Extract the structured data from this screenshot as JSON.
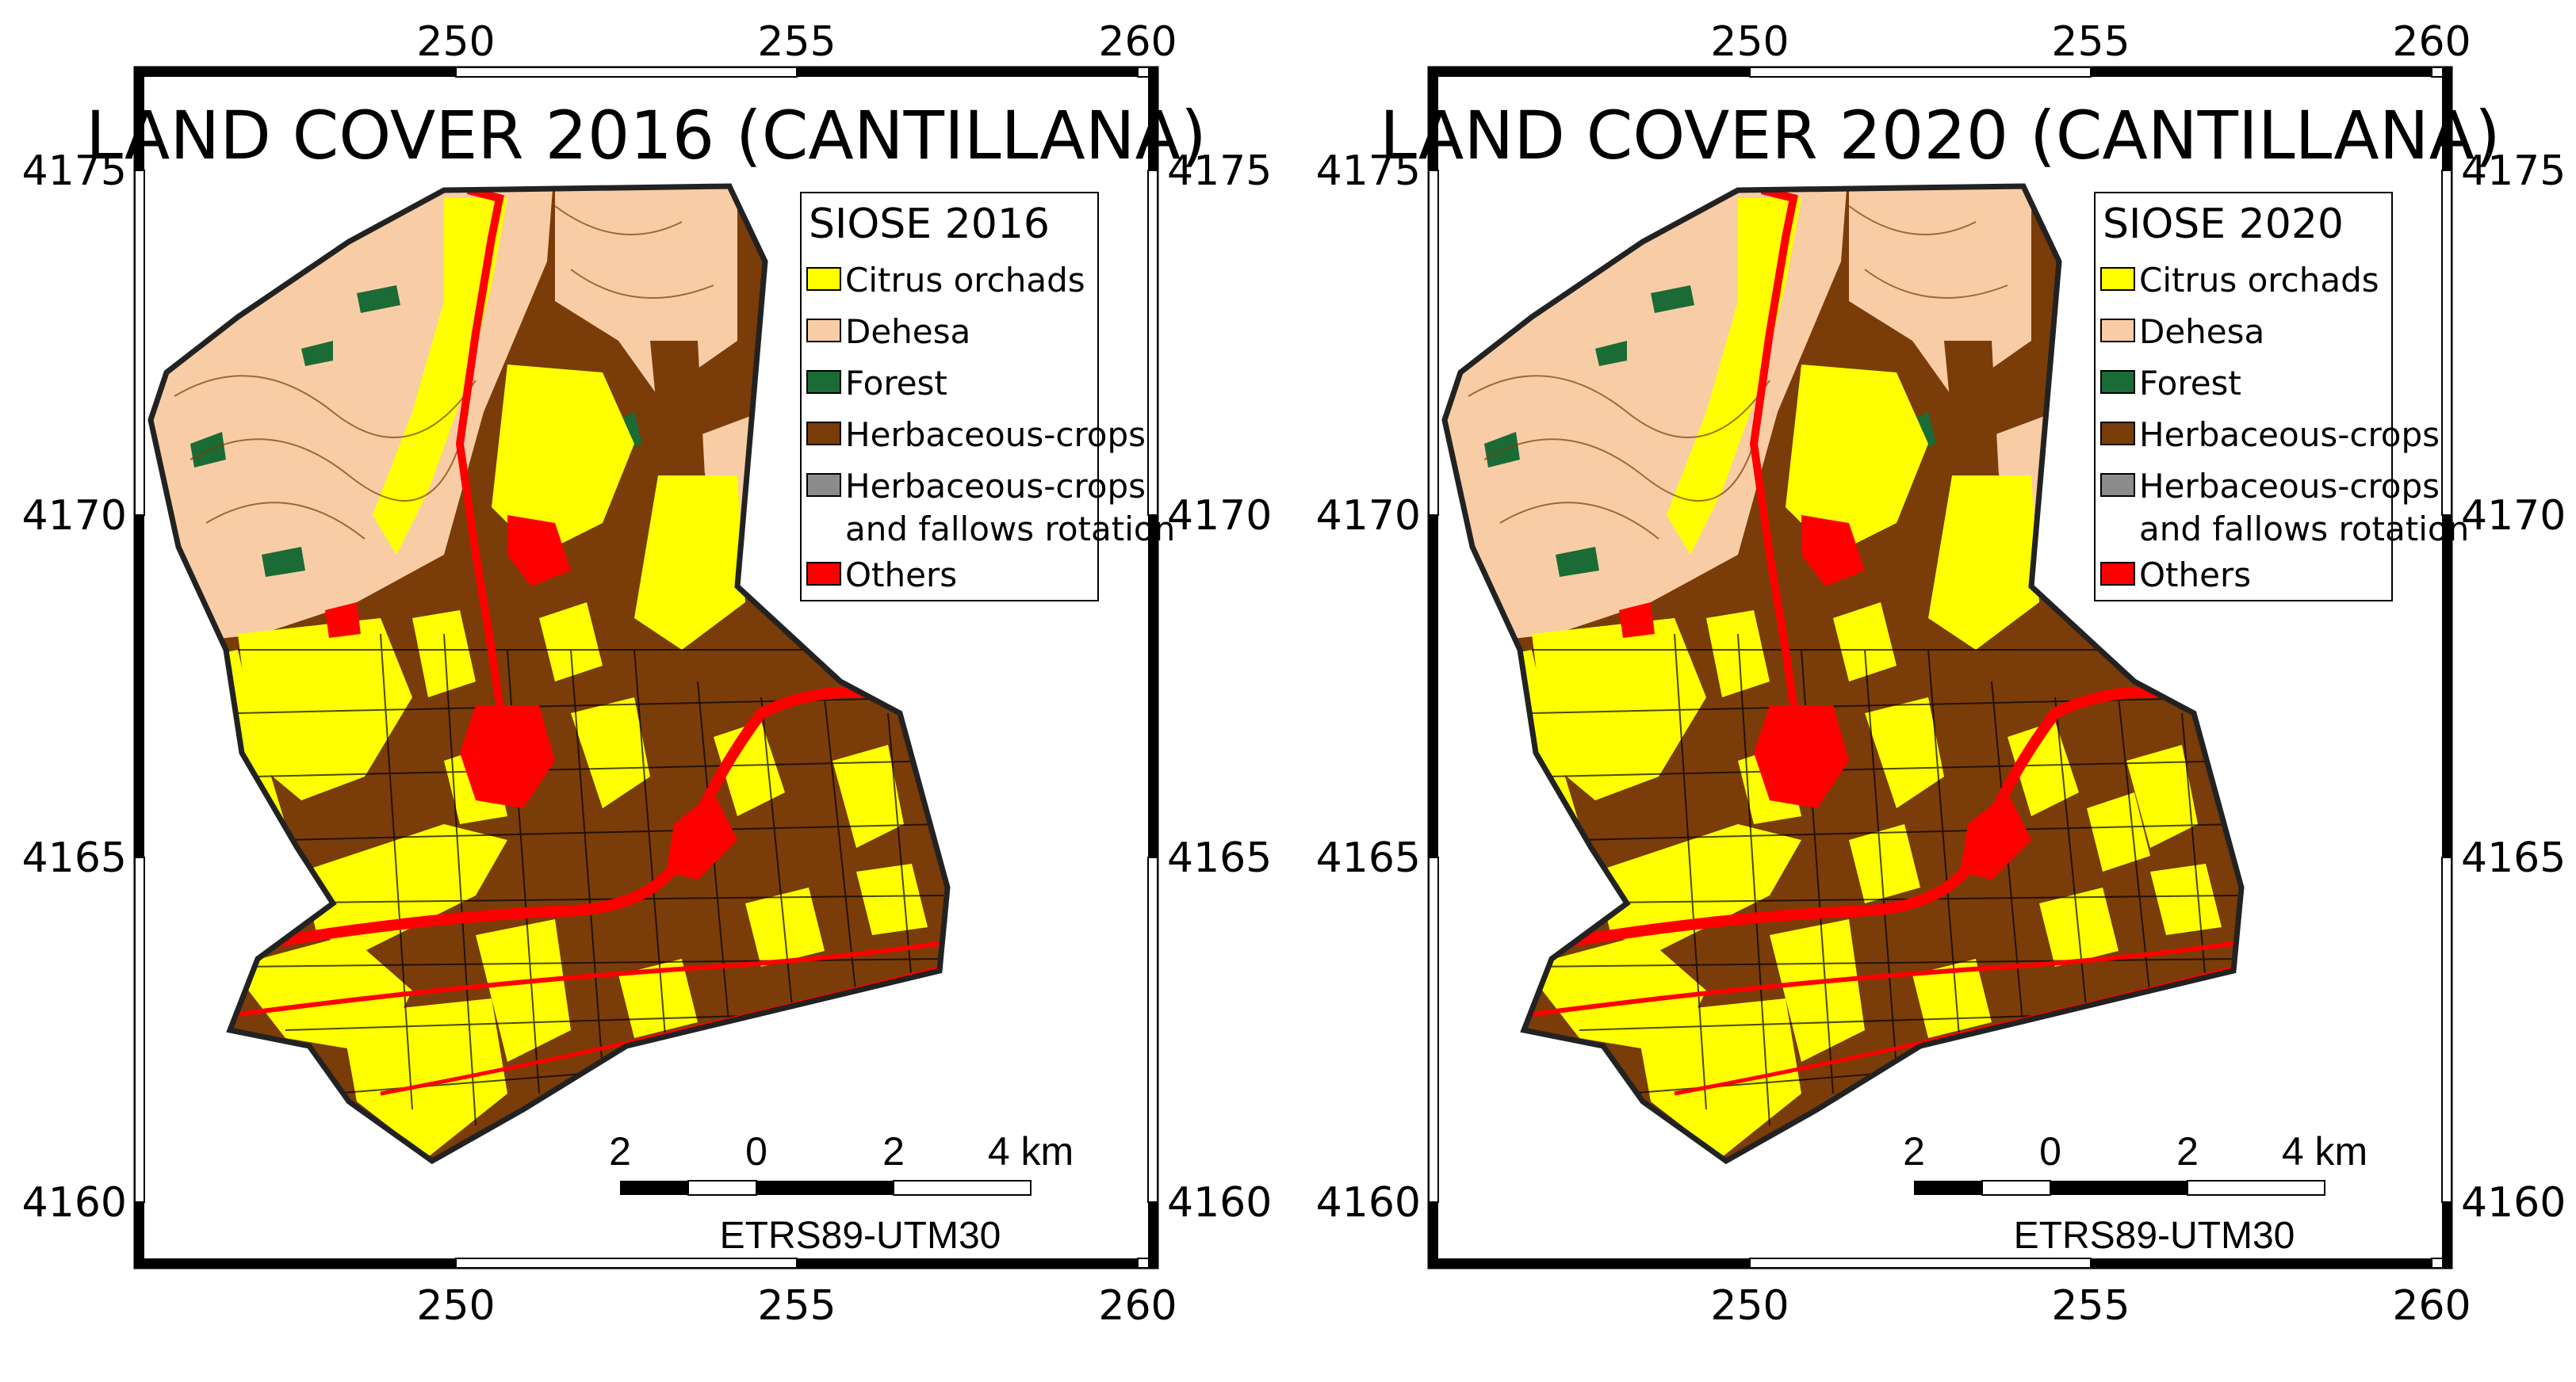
{
  "colors": {
    "citrus": "#ffff00",
    "dehesa": "#f8cda5",
    "forest": "#1b6b36",
    "herbaceous": "#7a3c09",
    "rotation": "#8c8c8c",
    "others": "#ff0000"
  },
  "axes": {
    "x_ticks": [
      "250",
      "255",
      "260"
    ],
    "y_ticks": [
      "4175",
      "4170",
      "4165",
      "4160"
    ]
  },
  "maps": [
    {
      "title": "LAND COVER 2016 (CANTILLANA)",
      "legend": {
        "title": "SIOSE 2016",
        "items": [
          {
            "label": "Citrus orchads",
            "color_key": "citrus"
          },
          {
            "label": "Dehesa",
            "color_key": "dehesa"
          },
          {
            "label": "Forest",
            "color_key": "forest"
          },
          {
            "label": "Herbaceous-crops",
            "color_key": "herbaceous"
          },
          {
            "label": "Herbaceous-crops",
            "label2": "and fallows rotation",
            "color_key": "rotation"
          },
          {
            "label": "Others",
            "color_key": "others"
          }
        ]
      },
      "scale_labels": [
        "2",
        "0",
        "2",
        "4 km"
      ],
      "crs": "ETRS89-UTM30"
    },
    {
      "title": "LAND COVER 2020 (CANTILLANA)",
      "legend": {
        "title": "SIOSE 2020",
        "items": [
          {
            "label": "Citrus orchads",
            "color_key": "citrus"
          },
          {
            "label": "Dehesa",
            "color_key": "dehesa"
          },
          {
            "label": "Forest",
            "color_key": "forest"
          },
          {
            "label": "Herbaceous-crops",
            "color_key": "herbaceous"
          },
          {
            "label": "Herbaceous-crops",
            "label2": "and fallows rotation",
            "color_key": "rotation"
          },
          {
            "label": "Others",
            "color_key": "others"
          }
        ]
      },
      "scale_labels": [
        "2",
        "0",
        "2",
        "4 km"
      ],
      "crs": "ETRS89-UTM30"
    }
  ]
}
